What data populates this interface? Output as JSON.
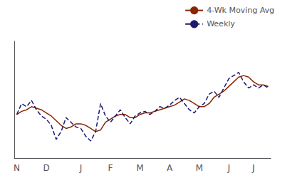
{
  "chart_data": {
    "type": "line",
    "categories": [
      "N",
      null,
      null,
      null,
      null,
      null,
      "D",
      null,
      null,
      null,
      null,
      null,
      null,
      "J",
      null,
      null,
      null,
      null,
      null,
      "F",
      null,
      null,
      null,
      null,
      null,
      "M",
      null,
      null,
      null,
      null,
      null,
      "A",
      null,
      null,
      null,
      null,
      null,
      "M",
      null,
      null,
      null,
      null,
      null,
      "J",
      null,
      null,
      null,
      null,
      "J",
      null,
      null,
      null
    ],
    "series": [
      {
        "name": "4-Wk Moving Avg",
        "color": "#8B2500",
        "line_style": "solid",
        "values": [
          213,
          215,
          216,
          218,
          217,
          216,
          214,
          212,
          209,
          206,
          204,
          205,
          207,
          207,
          206,
          204,
          202,
          203,
          208,
          210,
          212,
          213,
          213,
          211,
          211,
          213,
          214,
          214,
          215,
          216,
          217,
          218,
          219,
          221,
          223,
          222,
          220,
          218,
          218,
          220,
          224,
          226,
          228,
          231,
          234,
          237,
          238,
          237,
          234,
          232,
          232,
          231
        ]
      },
      {
        "name": "Weekly",
        "color": "#1a1a6e",
        "line_style": "dashed",
        "values": [
          213,
          220,
          218,
          222,
          216,
          212,
          210,
          206,
          197,
          202,
          211,
          208,
          205,
          204,
          199,
          196,
          202,
          220,
          212,
          208,
          212,
          216,
          211,
          207,
          212,
          214,
          215,
          213,
          215,
          218,
          217,
          219,
          222,
          224,
          220,
          216,
          214,
          218,
          220,
          226,
          228,
          224,
          230,
          236,
          238,
          240,
          234,
          230,
          232,
          230,
          232,
          230
        ]
      }
    ],
    "ylim": [
      185,
      260
    ],
    "yticks": [],
    "grid": false,
    "tick_labels": "x",
    "legend": "upper right"
  }
}
